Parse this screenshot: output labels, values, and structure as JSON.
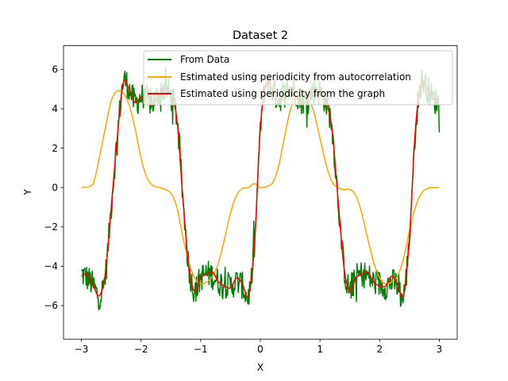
{
  "chart_data": {
    "type": "line",
    "title": "Dataset 2",
    "xlabel": "X",
    "ylabel": "Y",
    "xlim": [
      -3.3,
      3.3
    ],
    "ylim": [
      -7.7,
      7.2
    ],
    "xticks": [
      -3,
      -2,
      -1,
      0,
      1,
      2,
      3
    ],
    "xtick_labels": [
      "−3",
      "−2",
      "−1",
      "0",
      "1",
      "2",
      "3"
    ],
    "yticks": [
      -6,
      -4,
      -2,
      0,
      2,
      4,
      6
    ],
    "ytick_labels": [
      "−6",
      "−4",
      "−2",
      "0",
      "2",
      "4",
      "6"
    ],
    "grid": false,
    "legend_position": "top-right",
    "series": [
      {
        "name": "From Data",
        "color": "#008000",
        "x_start": -3.0,
        "x_end": 3.0,
        "x": [
          -3.0,
          -2.9,
          -2.8,
          -2.7,
          -2.6,
          -2.5,
          -2.4,
          -2.3,
          -2.2,
          -2.1,
          -2.0,
          -1.9,
          -1.8,
          -1.7,
          -1.6,
          -1.5,
          -1.4,
          -1.3,
          -1.2,
          -1.1,
          -1.0,
          -0.9,
          -0.8,
          -0.7,
          -0.6,
          -0.5,
          -0.4,
          -0.3,
          -0.2,
          -0.1,
          0.0,
          0.1,
          0.2,
          0.3,
          0.4,
          0.5,
          0.6,
          0.7,
          0.8,
          0.9,
          1.0,
          1.1,
          1.2,
          1.3,
          1.4,
          1.5,
          1.6,
          1.7,
          1.8,
          1.9,
          2.0,
          2.1,
          2.2,
          2.3,
          2.4,
          2.5,
          2.6,
          2.7,
          2.8,
          2.9,
          3.0
        ],
        "y": [
          -4.4,
          -4.6,
          -5.0,
          -5.5,
          -4.5,
          -1.0,
          2.5,
          5.3,
          5.0,
          4.3,
          4.6,
          4.5,
          4.3,
          4.8,
          5.0,
          4.6,
          3.5,
          -0.5,
          -4.0,
          -5.2,
          -4.6,
          -4.4,
          -4.5,
          -4.8,
          -4.9,
          -5.0,
          -4.8,
          -5.0,
          -5.5,
          -3.0,
          3.0,
          5.3,
          5.0,
          4.5,
          4.8,
          5.0,
          4.8,
          4.4,
          4.6,
          4.9,
          4.8,
          4.3,
          3.0,
          -0.5,
          -4.0,
          -5.2,
          -4.6,
          -4.4,
          -4.5,
          -4.8,
          -4.9,
          -5.0,
          -4.8,
          -5.0,
          -5.5,
          -2.5,
          3.0,
          5.3,
          5.0,
          4.5,
          4.3
        ],
        "noise_amplitude": 0.7
      },
      {
        "name": "Estimated using periodicity from autocorrelation",
        "color": "#FFA500",
        "x": [
          -3.0,
          -2.8,
          -2.7,
          -2.6,
          -2.5,
          -2.4,
          -2.3,
          -2.2,
          -2.1,
          -2.0,
          -1.9,
          -1.8,
          -1.7,
          -1.6,
          -1.5,
          -1.4,
          -1.3,
          -1.2,
          -1.1,
          -1.0,
          -0.9,
          -0.8,
          -0.7,
          -0.6,
          -0.5,
          -0.4,
          -0.3,
          -0.2,
          -0.1,
          0.0,
          0.2,
          0.3,
          0.4,
          0.5,
          0.6,
          0.7,
          0.8,
          0.9,
          1.0,
          1.1,
          1.2,
          1.3,
          1.4,
          1.5,
          1.6,
          1.7,
          1.8,
          1.9,
          2.0,
          2.1,
          2.2,
          2.3,
          2.4,
          2.5,
          2.6,
          2.7,
          2.8,
          2.9,
          3.0
        ],
        "y": [
          0.0,
          0.2,
          1.5,
          3.0,
          4.4,
          4.9,
          4.8,
          4.2,
          3.0,
          1.5,
          0.5,
          0.1,
          0.0,
          -0.1,
          -0.3,
          -1.0,
          -2.5,
          -3.8,
          -4.6,
          -4.9,
          -4.8,
          -4.5,
          -3.8,
          -2.6,
          -1.3,
          -0.4,
          -0.05,
          0.0,
          0.2,
          0.0,
          0.2,
          1.0,
          2.5,
          3.9,
          4.7,
          4.9,
          4.6,
          3.8,
          2.5,
          1.2,
          0.3,
          0.0,
          -0.1,
          -0.1,
          -0.4,
          -1.3,
          -2.6,
          -3.8,
          -4.6,
          -4.9,
          -4.8,
          -4.5,
          -3.6,
          -2.2,
          -1.0,
          -0.3,
          -0.05,
          0.0,
          0.0
        ]
      },
      {
        "name": "Estimated using periodicity from the graph",
        "color": "#FF0000",
        "x": [
          -3.0,
          -2.9,
          -2.8,
          -2.7,
          -2.6,
          -2.5,
          -2.4,
          -2.3,
          -2.2,
          -2.1,
          -2.0,
          -1.9,
          -1.8,
          -1.7,
          -1.6,
          -1.5,
          -1.4,
          -1.3,
          -1.2,
          -1.1,
          -1.0,
          -0.9,
          -0.8,
          -0.7,
          -0.6,
          -0.5,
          -0.4,
          -0.3,
          -0.2,
          -0.1,
          0.0,
          0.1,
          0.2,
          0.3,
          0.4,
          0.5,
          0.6,
          0.7,
          0.8,
          0.9,
          1.0,
          1.1,
          1.2,
          1.3,
          1.4,
          1.5,
          1.6,
          1.7,
          1.8,
          1.9,
          2.0,
          2.1,
          2.2,
          2.3,
          2.4,
          2.5,
          2.6,
          2.7,
          2.8,
          2.9,
          3.0
        ],
        "y": [
          -4.5,
          -4.4,
          -5.0,
          -5.5,
          -4.4,
          -1.0,
          2.5,
          5.3,
          5.0,
          4.3,
          4.6,
          4.3,
          4.2,
          4.7,
          5.0,
          4.6,
          3.5,
          -0.5,
          -4.0,
          -5.3,
          -4.6,
          -4.4,
          -4.3,
          -4.8,
          -5.0,
          -5.1,
          -4.6,
          -4.9,
          -5.5,
          -3.0,
          3.0,
          5.3,
          5.0,
          4.3,
          4.6,
          5.1,
          4.6,
          4.2,
          4.6,
          5.0,
          4.7,
          4.3,
          3.0,
          -0.5,
          -4.0,
          -5.3,
          -4.6,
          -4.4,
          -4.3,
          -4.8,
          -5.0,
          -5.0,
          -4.5,
          -4.9,
          -5.5,
          -2.5,
          3.0,
          5.3,
          5.0,
          4.5,
          4.5
        ]
      }
    ]
  }
}
